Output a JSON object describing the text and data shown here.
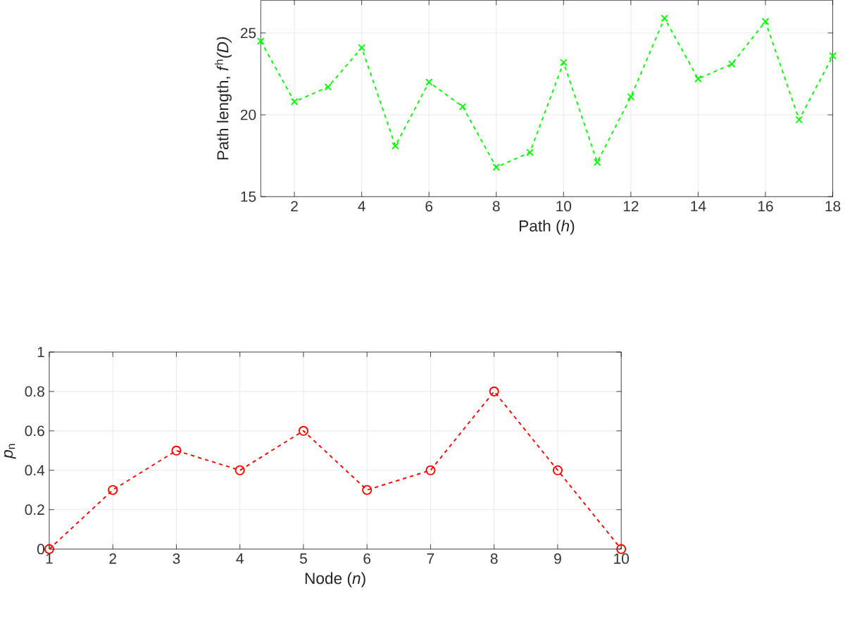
{
  "chart_data": [
    {
      "type": "line",
      "xlabel": "Path (*h*)",
      "ylabel": "Path length, *f*$^{h}$*(D)*",
      "x": [
        1,
        2,
        3,
        4,
        5,
        6,
        7,
        8,
        9,
        10,
        11,
        12,
        13,
        14,
        15,
        16,
        17,
        18
      ],
      "series": [
        {
          "color": "#00ff00",
          "values": [
            24.5,
            20.8,
            21.7,
            24.1,
            18.1,
            22.0,
            20.5,
            16.8,
            17.7,
            23.2,
            17.1,
            21.1,
            25.9,
            22.2,
            23.1,
            25.7,
            19.7,
            23.6
          ]
        }
      ],
      "xlim": [
        1,
        18
      ],
      "xticks": [
        2,
        4,
        6,
        8,
        10,
        12,
        14,
        16,
        18
      ],
      "ylim": [
        15,
        27
      ],
      "yticks": [
        15,
        20,
        25
      ],
      "grid": true,
      "marker": "cross",
      "line_style": "dashed"
    },
    {
      "type": "line",
      "xlabel": "Node (*n*)",
      "ylabel": "*p*$_{n}$",
      "x": [
        1,
        2,
        3,
        4,
        5,
        6,
        7,
        8,
        9,
        10
      ],
      "series": [
        {
          "color": "#ff0000",
          "values": [
            0,
            0.3,
            0.5,
            0.4,
            0.6,
            0.3,
            0.4,
            0.8,
            0.4,
            0
          ]
        }
      ],
      "xlim": [
        1,
        10
      ],
      "xticks": [
        1,
        2,
        3,
        4,
        5,
        6,
        7,
        8,
        9,
        10
      ],
      "ylim": [
        0,
        1
      ],
      "yticks": [
        0,
        0.2,
        0.4,
        0.6,
        0.8,
        1
      ],
      "grid": true,
      "marker": "circle",
      "line_style": "dashed"
    }
  ]
}
